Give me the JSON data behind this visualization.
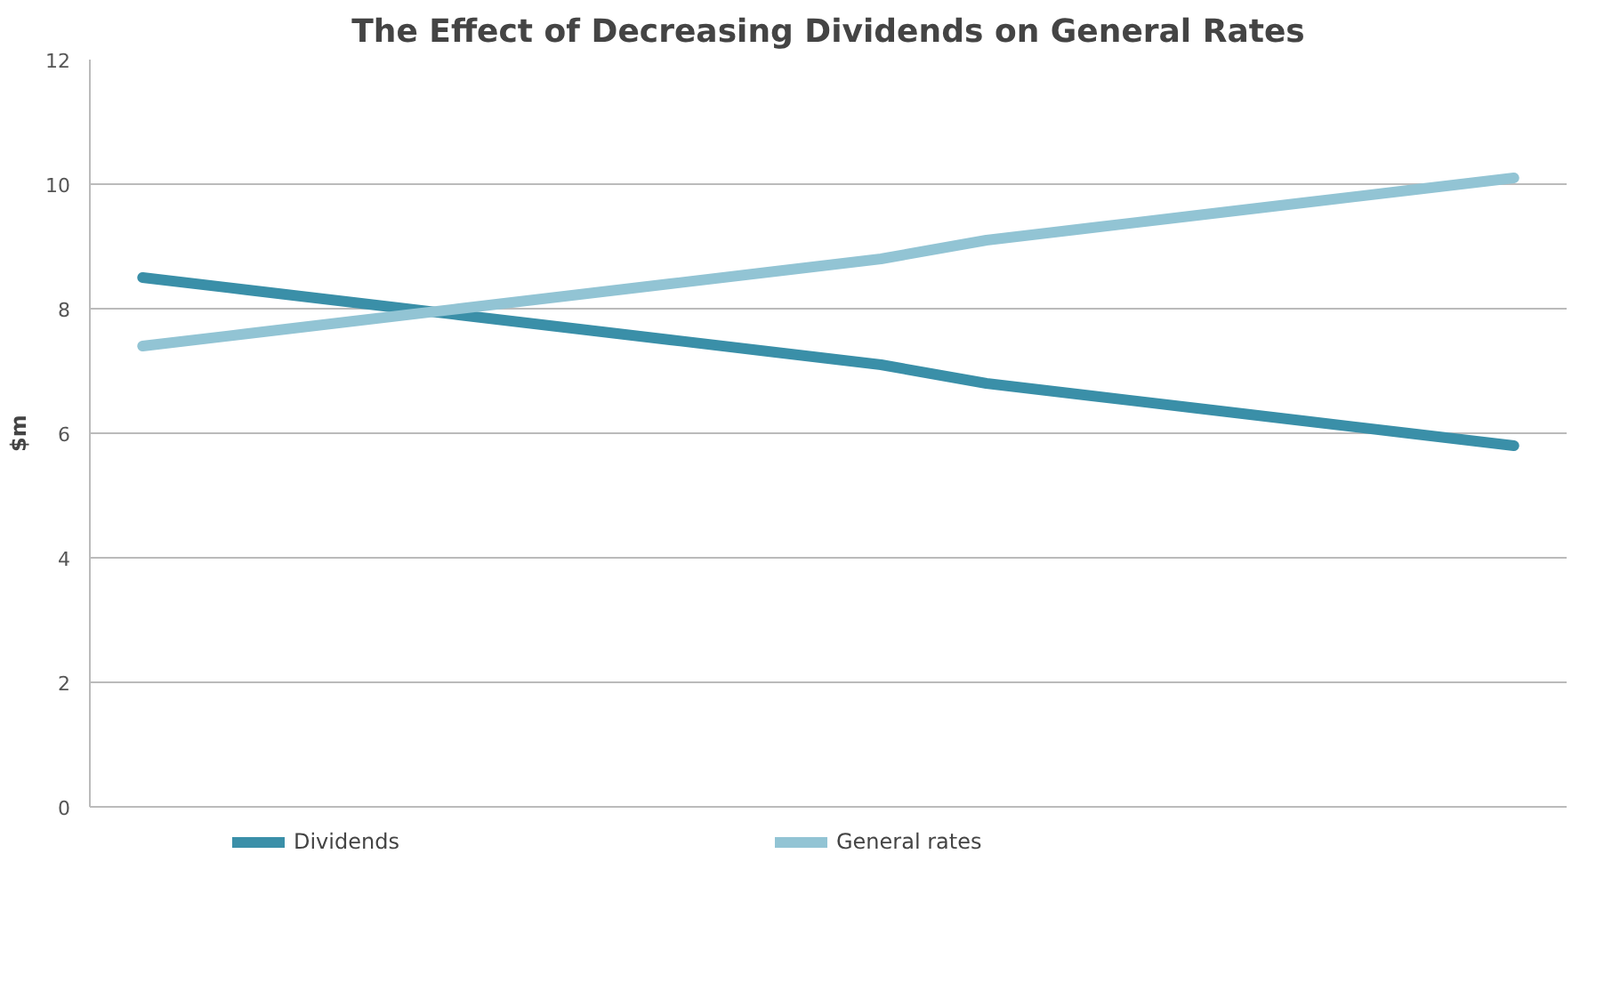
{
  "chart_data": {
    "type": "line",
    "title": "The Effect of Decreasing Dividends on General Rates",
    "ylabel": "$m",
    "categories": [
      null,
      null,
      null,
      null,
      null,
      null,
      null,
      null,
      null,
      null,
      null,
      null,
      null,
      null
    ],
    "series": [
      {
        "name": "Dividends",
        "color": "#3a8fa8",
        "values": [
          8.5,
          8.3,
          8.1,
          7.9,
          7.7,
          7.5,
          7.3,
          7.1,
          6.8,
          6.6,
          6.4,
          6.2,
          6.0,
          5.8
        ]
      },
      {
        "name": "General rates",
        "color": "#92c4d4",
        "values": [
          7.4,
          7.6,
          7.8,
          8.0,
          8.2,
          8.4,
          8.6,
          8.8,
          9.1,
          9.3,
          9.5,
          9.7,
          9.9,
          10.1
        ]
      }
    ],
    "ylim": [
      0,
      12
    ],
    "yticks": [
      0,
      2,
      4,
      6,
      8,
      10,
      12
    ],
    "grid": "y",
    "legend": "bottom",
    "tick_labels": "y"
  }
}
